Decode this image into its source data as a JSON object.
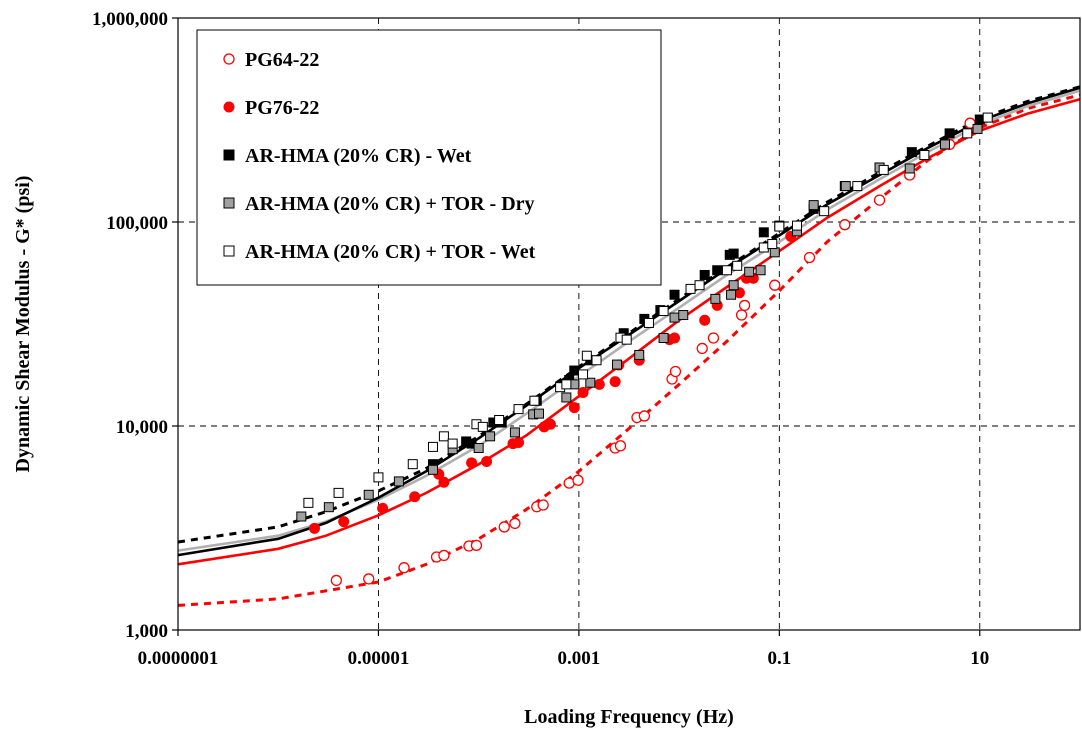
{
  "chart_data": {
    "type": "scatter",
    "title": "",
    "xlabel": "Loading Frequency (Hz)",
    "ylabel": "Dynamic Shear Modulus - G* (psi)",
    "x_scale": "log",
    "y_scale": "log",
    "xlim": [
      1e-07,
      100
    ],
    "ylim": [
      1000,
      1000000
    ],
    "x_ticks": [
      {
        "value": 1e-07,
        "label": "0.0000001"
      },
      {
        "value": 1e-05,
        "label": "0.00001"
      },
      {
        "value": 0.001,
        "label": "0.001"
      },
      {
        "value": 0.1,
        "label": "0.1"
      },
      {
        "value": 10,
        "label": "10"
      }
    ],
    "y_ticks": [
      {
        "value": 1000,
        "label": "1,000"
      },
      {
        "value": 10000,
        "label": "10,000"
      },
      {
        "value": 100000,
        "label": "100,000"
      },
      {
        "value": 1000000,
        "label": "1,000,000"
      }
    ],
    "grid": true,
    "legend_position": "top-left",
    "series": [
      {
        "name": "PG64-22",
        "marker": "circle-open",
        "color": "#ff0000",
        "fit_line": {
          "color": "#ff0000",
          "dash": true,
          "points": [
            [
              1e-07,
              1320
            ],
            [
              1e-06,
              1420
            ],
            [
              1e-05,
              1720
            ],
            [
              3e-05,
              2100
            ],
            [
              0.0001,
              2800
            ],
            [
              0.0003,
              3900
            ],
            [
              0.001,
              6000
            ],
            [
              0.003,
              9500
            ],
            [
              0.01,
              16000
            ],
            [
              0.03,
              26000
            ],
            [
              0.1,
              46000
            ],
            [
              0.3,
              80000
            ],
            [
              1,
              130000
            ],
            [
              3,
              200000
            ],
            [
              10,
              290000
            ],
            [
              30,
              360000
            ],
            [
              100,
              420000
            ]
          ]
        },
        "points": [
          [
            3.8e-06,
            1750
          ],
          [
            8e-06,
            1780
          ],
          [
            1.8e-05,
            2020
          ],
          [
            3.8e-05,
            2280
          ],
          [
            4.5e-05,
            2320
          ],
          [
            8e-05,
            2580
          ],
          [
            9.5e-05,
            2600
          ],
          [
            0.00018,
            3200
          ],
          [
            0.00023,
            3330
          ],
          [
            0.00038,
            4020
          ],
          [
            0.00044,
            4100
          ],
          [
            0.0008,
            5250
          ],
          [
            0.00098,
            5420
          ],
          [
            0.0023,
            7800
          ],
          [
            0.0026,
            8000
          ],
          [
            0.0038,
            11000
          ],
          [
            0.0045,
            11200
          ],
          [
            0.0085,
            17000
          ],
          [
            0.0092,
            18500
          ],
          [
            0.017,
            24000
          ],
          [
            0.022,
            27000
          ],
          [
            0.042,
            35000
          ],
          [
            0.045,
            39000
          ],
          [
            0.09,
            49000
          ],
          [
            0.2,
            67000
          ],
          [
            0.45,
            97000
          ],
          [
            1.0,
            128000
          ],
          [
            2.0,
            170000
          ],
          [
            5.0,
            240000
          ],
          [
            8.0,
            305000
          ]
        ]
      },
      {
        "name": "PG76-22",
        "marker": "circle-filled",
        "color": "#ff0000",
        "fit_line": {
          "color": "#ff0000",
          "dash": false,
          "points": [
            [
              1e-07,
              2100
            ],
            [
              1e-06,
              2500
            ],
            [
              3e-06,
              2900
            ],
            [
              1e-05,
              3650
            ],
            [
              3e-05,
              4700
            ],
            [
              0.0001,
              6500
            ],
            [
              0.0003,
              9000
            ],
            [
              0.001,
              14000
            ],
            [
              0.003,
              21000
            ],
            [
              0.01,
              33000
            ],
            [
              0.03,
              48000
            ],
            [
              0.1,
              72000
            ],
            [
              0.3,
              105000
            ],
            [
              1,
              150000
            ],
            [
              3,
              205000
            ],
            [
              10,
              280000
            ],
            [
              30,
              340000
            ],
            [
              100,
              400000
            ]
          ]
        },
        "points": [
          [
            2.3e-06,
            3150
          ],
          [
            4.5e-06,
            3400
          ],
          [
            1.1e-05,
            3950
          ],
          [
            2.3e-05,
            4500
          ],
          [
            4.5e-05,
            5300
          ],
          [
            4e-05,
            5800
          ],
          [
            8.5e-05,
            6600
          ],
          [
            0.00012,
            6700
          ],
          [
            0.00022,
            8200
          ],
          [
            0.00025,
            8300
          ],
          [
            0.00045,
            9900
          ],
          [
            0.00052,
            10200
          ],
          [
            0.0009,
            12300
          ],
          [
            0.0011,
            14600
          ],
          [
            0.0016,
            16000
          ],
          [
            0.0023,
            16500
          ],
          [
            0.0025,
            19900
          ],
          [
            0.004,
            21000
          ],
          [
            0.008,
            26500
          ],
          [
            0.009,
            27000
          ],
          [
            0.018,
            33000
          ],
          [
            0.024,
            39000
          ],
          [
            0.04,
            45000
          ],
          [
            0.047,
            53000
          ],
          [
            0.055,
            53000
          ],
          [
            0.13,
            85000
          ]
        ]
      },
      {
        "name": "AR-HMA (20% CR) - Wet",
        "marker": "square-filled",
        "color": "#000000",
        "fit_line": {
          "color": "#000000",
          "dash": true,
          "points": [
            [
              1e-07,
              2700
            ],
            [
              1e-06,
              3200
            ],
            [
              3e-06,
              3800
            ],
            [
              1e-05,
              4800
            ],
            [
              3e-05,
              6200
            ],
            [
              0.0001,
              8900
            ],
            [
              0.0003,
              12800
            ],
            [
              0.001,
              19500
            ],
            [
              0.003,
              28000
            ],
            [
              0.01,
              42000
            ],
            [
              0.03,
              60000
            ],
            [
              0.1,
              88000
            ],
            [
              0.3,
              125000
            ],
            [
              1,
              175000
            ],
            [
              3,
              235000
            ],
            [
              10,
              320000
            ],
            [
              30,
              390000
            ],
            [
              100,
              460000
            ]
          ]
        },
        "points": [
          [
            3.5e-05,
            6500
          ],
          [
            7.5e-05,
            8400
          ],
          [
            8.5e-05,
            8200
          ],
          [
            0.00014,
            10400
          ],
          [
            0.00017,
            10400
          ],
          [
            0.00038,
            13300
          ],
          [
            0.0008,
            16800
          ],
          [
            0.0009,
            18700
          ],
          [
            0.0013,
            21000
          ],
          [
            0.0028,
            28500
          ],
          [
            0.0045,
            33500
          ],
          [
            0.0065,
            37000
          ],
          [
            0.009,
            44000
          ],
          [
            0.018,
            55000
          ],
          [
            0.024,
            58000
          ],
          [
            0.032,
            69000
          ],
          [
            0.035,
            70000
          ],
          [
            0.07,
            89000
          ],
          [
            0.1,
            96000
          ],
          [
            0.22,
            116000
          ],
          [
            0.45,
            150000
          ],
          [
            1.0,
            185000
          ],
          [
            2.1,
            220000
          ],
          [
            5.0,
            272000
          ],
          [
            10.0,
            318000
          ]
        ]
      },
      {
        "name": "AR-HMA (20% CR) + TOR - Dry",
        "marker": "square-gray",
        "color": "#a0a0a0",
        "fit_line": {
          "color": "#b0b0b0",
          "dash": false,
          "points": [
            [
              1e-07,
              2450
            ],
            [
              1e-06,
              2900
            ],
            [
              3e-06,
              3400
            ],
            [
              1e-05,
              4350
            ],
            [
              3e-05,
              5700
            ],
            [
              0.0001,
              8000
            ],
            [
              0.0003,
              11500
            ],
            [
              0.001,
              17500
            ],
            [
              0.003,
              25500
            ],
            [
              0.01,
              38000
            ],
            [
              0.03,
              55000
            ],
            [
              0.1,
              80000
            ],
            [
              0.3,
              115000
            ],
            [
              1,
              162000
            ],
            [
              3,
              220000
            ],
            [
              10,
              300000
            ],
            [
              30,
              370000
            ],
            [
              100,
              440000
            ]
          ]
        },
        "points": [
          [
            1.7e-06,
            3600
          ],
          [
            3.2e-06,
            4000
          ],
          [
            8e-06,
            4600
          ],
          [
            1.6e-05,
            5350
          ],
          [
            3.5e-05,
            6100
          ],
          [
            5.5e-05,
            7700
          ],
          [
            0.0001,
            7800
          ],
          [
            0.00013,
            8900
          ],
          [
            0.00023,
            9300
          ],
          [
            0.00035,
            11400
          ],
          [
            0.0004,
            11500
          ],
          [
            0.00075,
            13800
          ],
          [
            0.0009,
            16000
          ],
          [
            0.0013,
            16300
          ],
          [
            0.0024,
            20000
          ],
          [
            0.004,
            22300
          ],
          [
            0.007,
            27000
          ],
          [
            0.009,
            34000
          ],
          [
            0.011,
            35000
          ],
          [
            0.023,
            42000
          ],
          [
            0.033,
            44000
          ],
          [
            0.035,
            49000
          ],
          [
            0.05,
            57000
          ],
          [
            0.065,
            58000
          ],
          [
            0.09,
            71000
          ],
          [
            0.15,
            90000
          ],
          [
            0.22,
            121000
          ],
          [
            0.46,
            150000
          ],
          [
            1.0,
            185000
          ],
          [
            2.0,
            183000
          ],
          [
            4.5,
            240000
          ],
          [
            9.5,
            286000
          ]
        ]
      },
      {
        "name": "AR-HMA (20% CR) + TOR - Wet",
        "marker": "square-open",
        "color": "#000000",
        "fit_line": {
          "color": "#000000",
          "dash": false,
          "points": [
            [
              1e-07,
              2330
            ],
            [
              1e-06,
              2800
            ],
            [
              3e-06,
              3350
            ],
            [
              1e-05,
              4450
            ],
            [
              3e-05,
              6000
            ],
            [
              0.0001,
              8700
            ],
            [
              0.0003,
              12600
            ],
            [
              0.001,
              19200
            ],
            [
              0.003,
              27500
            ],
            [
              0.01,
              41000
            ],
            [
              0.03,
              59000
            ],
            [
              0.1,
              86000
            ],
            [
              0.3,
              122000
            ],
            [
              1,
              170000
            ],
            [
              3,
              230000
            ],
            [
              10,
              312000
            ],
            [
              30,
              382000
            ],
            [
              100,
              455000
            ]
          ]
        },
        "points": [
          [
            2e-06,
            4200
          ],
          [
            4e-06,
            4700
          ],
          [
            1e-05,
            5600
          ],
          [
            2.2e-05,
            6500
          ],
          [
            3.5e-05,
            7900
          ],
          [
            4.5e-05,
            8900
          ],
          [
            5.5e-05,
            8200
          ],
          [
            9.5e-05,
            10200
          ],
          [
            0.00011,
            9900
          ],
          [
            0.00016,
            10700
          ],
          [
            0.00025,
            12100
          ],
          [
            0.00036,
            13300
          ],
          [
            0.00065,
            15500
          ],
          [
            0.00075,
            16000
          ],
          [
            0.0011,
            17900
          ],
          [
            0.0012,
            22100
          ],
          [
            0.0015,
            21000
          ],
          [
            0.0026,
            27100
          ],
          [
            0.003,
            26500
          ],
          [
            0.005,
            32000
          ],
          [
            0.007,
            36600
          ],
          [
            0.013,
            47000
          ],
          [
            0.016,
            49000
          ],
          [
            0.03,
            58000
          ],
          [
            0.038,
            61000
          ],
          [
            0.07,
            75000
          ],
          [
            0.085,
            78000
          ],
          [
            0.1,
            95000
          ],
          [
            0.15,
            96000
          ],
          [
            0.28,
            113000
          ],
          [
            0.6,
            150000
          ],
          [
            1.1,
            180000
          ],
          [
            2.8,
            213000
          ],
          [
            7.5,
            272000
          ],
          [
            12,
            325000
          ]
        ]
      }
    ]
  }
}
